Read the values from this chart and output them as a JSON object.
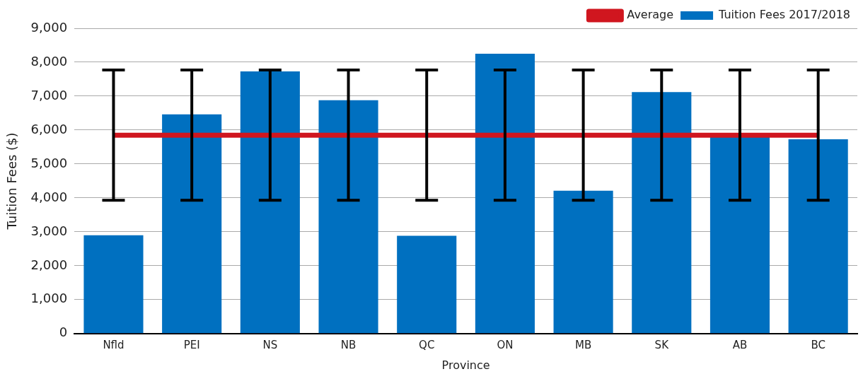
{
  "chart_data": {
    "type": "bar",
    "xlabel": "Province",
    "ylabel": "Tuition Fees ($)",
    "categories": [
      "Nfld",
      "PEI",
      "NS",
      "NB",
      "QC",
      "ON",
      "MB",
      "SK",
      "AB",
      "BC"
    ],
    "series": [
      {
        "name": "Tuition Fees 2017/2018",
        "color": "#0070c0",
        "values": [
          2900,
          6460,
          7730,
          6880,
          2880,
          8250,
          4210,
          7120,
          5790,
          5730
        ]
      },
      {
        "name": "Average",
        "type": "line",
        "color": "#d0161f",
        "values": [
          5850,
          5850,
          5850,
          5850,
          5850,
          5850,
          5850,
          5850,
          5850,
          5850
        ],
        "errors": [
          1920,
          1920,
          1920,
          1920,
          1920,
          1920,
          1920,
          1920,
          1920,
          1920
        ],
        "marker": "none"
      }
    ],
    "ylim": [
      0,
      9000
    ],
    "yticks": [
      {
        "value": 0,
        "label": "0"
      },
      {
        "value": 1000,
        "label": "1,000"
      },
      {
        "value": 2000,
        "label": "2,000"
      },
      {
        "value": 3000,
        "label": "3,000"
      },
      {
        "value": 4000,
        "label": "4,000"
      },
      {
        "value": 5000,
        "label": "5,000"
      },
      {
        "value": 6000,
        "label": "6,000"
      },
      {
        "value": 7000,
        "label": "7,000"
      },
      {
        "value": 8000,
        "label": "8,000"
      },
      {
        "value": 9000,
        "label": "9,000"
      }
    ],
    "grid": "y",
    "legend": "top right"
  }
}
